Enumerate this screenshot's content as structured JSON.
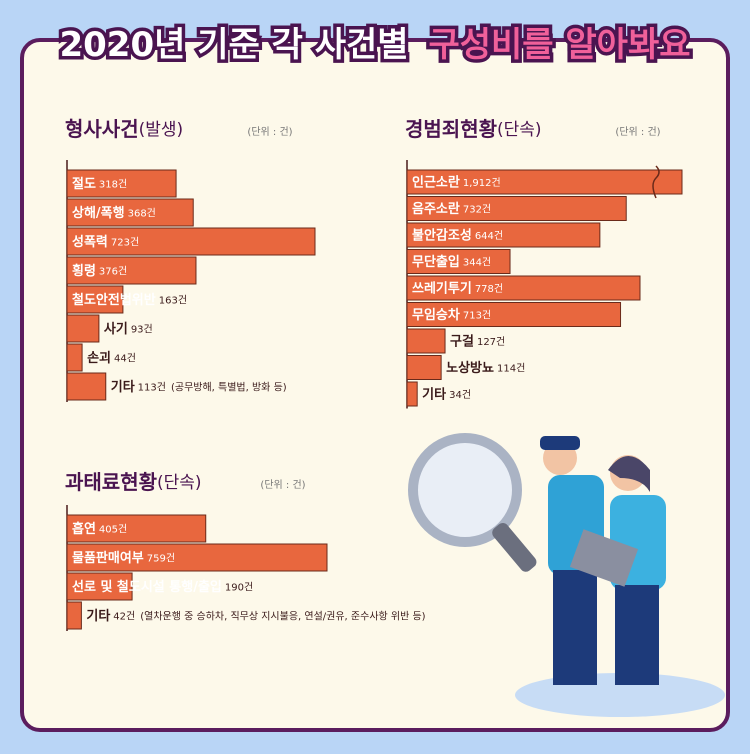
{
  "title": {
    "main": "2020년 기준 각 사건별",
    "highlight": "구성비를 알아봐요"
  },
  "chart_data": [
    {
      "type": "hbar",
      "title": "형사사건",
      "subtitle": "(발생)",
      "unit": "(단위 : 건)",
      "color": "#e8673e",
      "categories": [
        "절도",
        "상해/폭행",
        "성폭력",
        "횡령",
        "철도안전법위반",
        "사기",
        "손괴",
        "기타"
      ],
      "values": [
        318,
        368,
        723,
        376,
        163,
        93,
        44,
        113
      ],
      "value_labels": [
        "318건",
        "368건",
        "723건",
        "376건",
        "163건",
        "93건",
        "44건",
        "113건"
      ],
      "annotation": "(공무방해, 특별법, 방화 등)"
    },
    {
      "type": "hbar",
      "title": "경범죄현황",
      "subtitle": "(단속)",
      "unit": "(단위 : 건)",
      "color": "#e8673e",
      "axis_break": true,
      "categories": [
        "인근소란",
        "음주소란",
        "불안감조성",
        "무단출입",
        "쓰레기투기",
        "무임승차",
        "구걸",
        "노상방뇨",
        "기타"
      ],
      "values": [
        1912,
        732,
        644,
        344,
        778,
        713,
        127,
        114,
        34
      ],
      "value_labels": [
        "1,912건",
        "732건",
        "644건",
        "344건",
        "778건",
        "713건",
        "127건",
        "114건",
        "34건"
      ]
    },
    {
      "type": "hbar",
      "title": "과태료현황",
      "subtitle": "(단속)",
      "unit": "(단위 : 건)",
      "color": "#e8673e",
      "categories": [
        "흡연",
        "물품판매여부",
        "선로 및 철도시설 통행/출입",
        "기타"
      ],
      "values": [
        405,
        759,
        190,
        42
      ],
      "value_labels": [
        "405건",
        "759건",
        "190건",
        "42건"
      ],
      "annotation": "(열차운행 중 승하차, 직무상 지시불응, 연설/권유, 준수사항 위반 등)"
    }
  ]
}
